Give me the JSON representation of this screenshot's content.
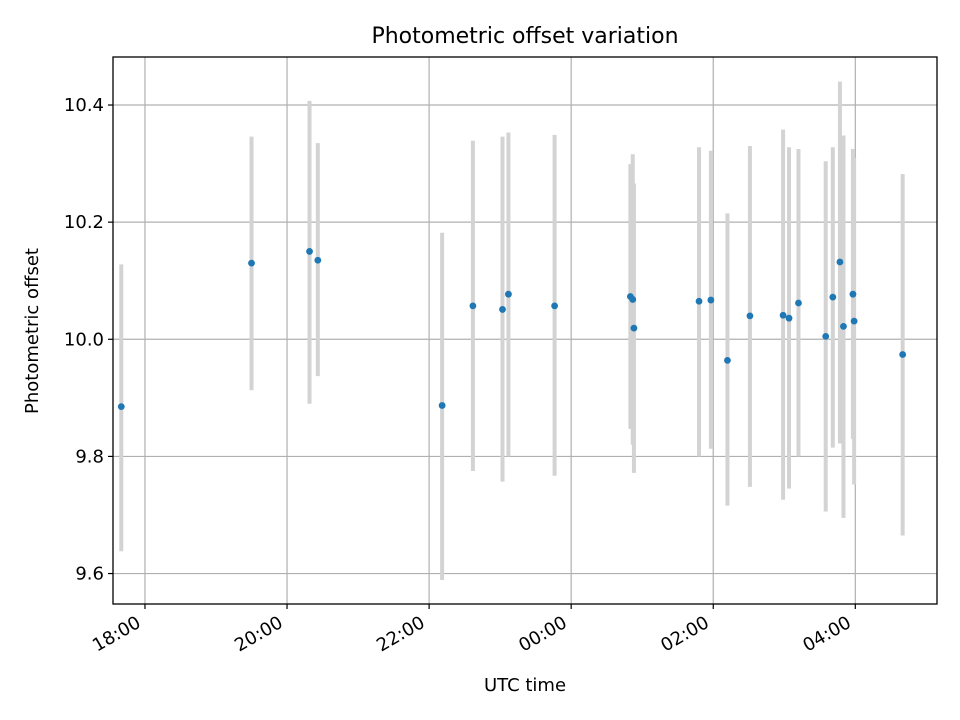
{
  "chart_data": {
    "type": "scatter",
    "title": "Photometric offset variation",
    "xlabel": "UTC time",
    "ylabel": "Photometric offset",
    "x_is_time": true,
    "xlim": [
      "17:33",
      "05:09"
    ],
    "ylim": [
      9.548,
      10.482
    ],
    "grid": true,
    "xticks": [
      "18:00",
      "20:00",
      "22:00",
      "00:00",
      "02:00",
      "04:00"
    ],
    "yticks": [
      9.6,
      9.8,
      10.0,
      10.2,
      10.4
    ],
    "colors": {
      "point": "#1f77b4",
      "errorbar": "#d3d3d3",
      "grid": "#b0b0b0"
    },
    "series": [
      {
        "points": [
          {
            "x": "17:40",
            "y": 9.885,
            "ylow": 9.638,
            "yhigh": 10.128
          },
          {
            "x": "19:30",
            "y": 10.13,
            "ylow": 9.913,
            "yhigh": 10.346
          },
          {
            "x": "20:19",
            "y": 10.15,
            "ylow": 9.89,
            "yhigh": 10.407
          },
          {
            "x": "20:26",
            "y": 10.135,
            "ylow": 9.937,
            "yhigh": 10.335
          },
          {
            "x": "22:11",
            "y": 9.887,
            "ylow": 9.589,
            "yhigh": 10.182
          },
          {
            "x": "22:37",
            "y": 10.057,
            "ylow": 9.775,
            "yhigh": 10.339
          },
          {
            "x": "23:02",
            "y": 10.051,
            "ylow": 9.757,
            "yhigh": 10.346
          },
          {
            "x": "23:07",
            "y": 10.077,
            "ylow": 9.8,
            "yhigh": 10.353
          },
          {
            "x": "23:46",
            "y": 10.057,
            "ylow": 9.767,
            "yhigh": 10.349
          },
          {
            "x": "00:50",
            "y": 10.073,
            "ylow": 9.847,
            "yhigh": 10.299
          },
          {
            "x": "00:52",
            "y": 10.068,
            "ylow": 9.82,
            "yhigh": 10.316
          },
          {
            "x": "00:53",
            "y": 10.019,
            "ylow": 9.772,
            "yhigh": 10.266
          },
          {
            "x": "01:48",
            "y": 10.065,
            "ylow": 9.8,
            "yhigh": 10.328
          },
          {
            "x": "01:58",
            "y": 10.067,
            "ylow": 9.813,
            "yhigh": 10.322
          },
          {
            "x": "02:12",
            "y": 9.964,
            "ylow": 9.716,
            "yhigh": 10.215
          },
          {
            "x": "02:31",
            "y": 10.04,
            "ylow": 9.748,
            "yhigh": 10.33
          },
          {
            "x": "02:59",
            "y": 10.041,
            "ylow": 9.726,
            "yhigh": 10.358
          },
          {
            "x": "03:04",
            "y": 10.036,
            "ylow": 9.745,
            "yhigh": 10.328
          },
          {
            "x": "03:12",
            "y": 10.062,
            "ylow": 9.8,
            "yhigh": 10.325
          },
          {
            "x": "03:35",
            "y": 10.005,
            "ylow": 9.706,
            "yhigh": 10.304
          },
          {
            "x": "03:41",
            "y": 10.072,
            "ylow": 9.815,
            "yhigh": 10.328
          },
          {
            "x": "03:47",
            "y": 10.132,
            "ylow": 9.822,
            "yhigh": 10.44
          },
          {
            "x": "03:50",
            "y": 10.022,
            "ylow": 9.695,
            "yhigh": 10.348
          },
          {
            "x": "03:58",
            "y": 10.077,
            "ylow": 9.83,
            "yhigh": 10.325
          },
          {
            "x": "03:59",
            "y": 10.031,
            "ylow": 9.752,
            "yhigh": 10.31
          },
          {
            "x": "04:40",
            "y": 9.974,
            "ylow": 9.665,
            "yhigh": 10.282
          }
        ]
      }
    ]
  }
}
